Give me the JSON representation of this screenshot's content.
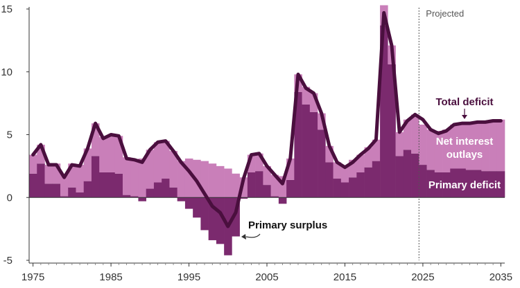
{
  "chart_data": {
    "type": "bar",
    "title": "",
    "xlabel": "",
    "ylabel": "",
    "x": [
      1975,
      1976,
      1977,
      1978,
      1979,
      1980,
      1981,
      1982,
      1983,
      1984,
      1985,
      1986,
      1987,
      1988,
      1989,
      1990,
      1991,
      1992,
      1993,
      1994,
      1995,
      1996,
      1997,
      1998,
      1999,
      2000,
      2001,
      2002,
      2003,
      2004,
      2005,
      2006,
      2007,
      2008,
      2009,
      2010,
      2011,
      2012,
      2013,
      2014,
      2015,
      2016,
      2017,
      2018,
      2019,
      2020,
      2021,
      2022,
      2023,
      2024,
      2025,
      2026,
      2027,
      2028,
      2029,
      2030,
      2031,
      2032,
      2033,
      2034,
      2035
    ],
    "xlim": [
      1974.5,
      2035.5
    ],
    "ylim": [
      -5,
      15
    ],
    "x_ticks": [
      "1975",
      "1985",
      "1995",
      "2005",
      "2015",
      "2025",
      "2035"
    ],
    "y_ticks": [
      "15",
      "10",
      "5",
      "0",
      "-5"
    ],
    "x_tick_values": [
      1975,
      1985,
      1995,
      2005,
      2015,
      2025,
      2035
    ],
    "y_tick_values": [
      15,
      10,
      5,
      0,
      -5
    ],
    "grid": "none",
    "series": [
      {
        "name": "Primary deficit",
        "color": "#7b2a6e",
        "values": [
          1.9,
          2.7,
          1.1,
          1.1,
          0.1,
          0.8,
          0.4,
          1.3,
          3.3,
          2.0,
          2.0,
          1.9,
          0.2,
          0.1,
          -0.3,
          0.7,
          1.2,
          1.5,
          0.8,
          -0.3,
          -0.9,
          -1.6,
          -2.6,
          -3.4,
          -3.7,
          -4.6,
          -3.1,
          -0.1,
          2.0,
          2.1,
          1.0,
          0.1,
          -0.5,
          1.4,
          8.4,
          7.4,
          6.8,
          5.4,
          2.8,
          1.5,
          1.2,
          1.6,
          2.0,
          2.4,
          2.9,
          13.7,
          10.6,
          3.3,
          3.8,
          3.5,
          2.6,
          2.2,
          2.0,
          2.0,
          2.3,
          2.3,
          2.2,
          2.2,
          2.1,
          2.1,
          2.1
        ]
      },
      {
        "name": "Net interest outlays",
        "color": "#c97fb9",
        "values": [
          1.5,
          1.5,
          1.5,
          1.6,
          1.7,
          1.9,
          2.2,
          2.6,
          2.6,
          2.8,
          2.9,
          3.0,
          3.0,
          2.9,
          3.1,
          3.1,
          3.2,
          3.0,
          2.9,
          2.9,
          3.1,
          3.0,
          2.9,
          2.7,
          2.5,
          2.3,
          1.9,
          1.6,
          1.4,
          1.4,
          1.5,
          1.7,
          1.7,
          1.7,
          1.4,
          1.4,
          1.5,
          1.3,
          1.3,
          1.3,
          1.3,
          1.4,
          1.4,
          1.6,
          1.7,
          1.6,
          1.5,
          1.9,
          2.4,
          3.1,
          3.2,
          3.2,
          3.3,
          3.4,
          3.5,
          3.6,
          3.7,
          3.8,
          3.9,
          4.0,
          4.1
        ]
      },
      {
        "name": "Total deficit",
        "color": "#4a0f3e",
        "type": "line",
        "values": [
          3.4,
          4.2,
          2.6,
          2.6,
          1.6,
          2.6,
          2.5,
          3.9,
          5.9,
          4.7,
          5.0,
          4.9,
          3.1,
          3.0,
          2.8,
          3.8,
          4.4,
          4.5,
          3.7,
          2.8,
          2.1,
          1.3,
          0.3,
          -0.7,
          -1.2,
          -2.3,
          -1.2,
          1.5,
          3.4,
          3.5,
          2.5,
          1.8,
          1.1,
          3.1,
          9.8,
          8.7,
          8.3,
          6.7,
          4.1,
          2.8,
          2.4,
          2.8,
          3.4,
          3.9,
          4.6,
          14.7,
          12.1,
          5.2,
          6.1,
          6.6,
          6.2,
          5.4,
          5.1,
          5.3,
          5.8,
          5.9,
          5.9,
          6.0,
          6.0,
          6.1,
          6.1
        ]
      }
    ],
    "projected_start": 2024.5,
    "annotations": {
      "projected": "Projected",
      "total_deficit": "Total deficit",
      "net_interest_line1": "Net interest",
      "net_interest_line2": "outlays",
      "primary_deficit": "Primary deficit",
      "primary_surplus": "Primary surplus"
    }
  }
}
